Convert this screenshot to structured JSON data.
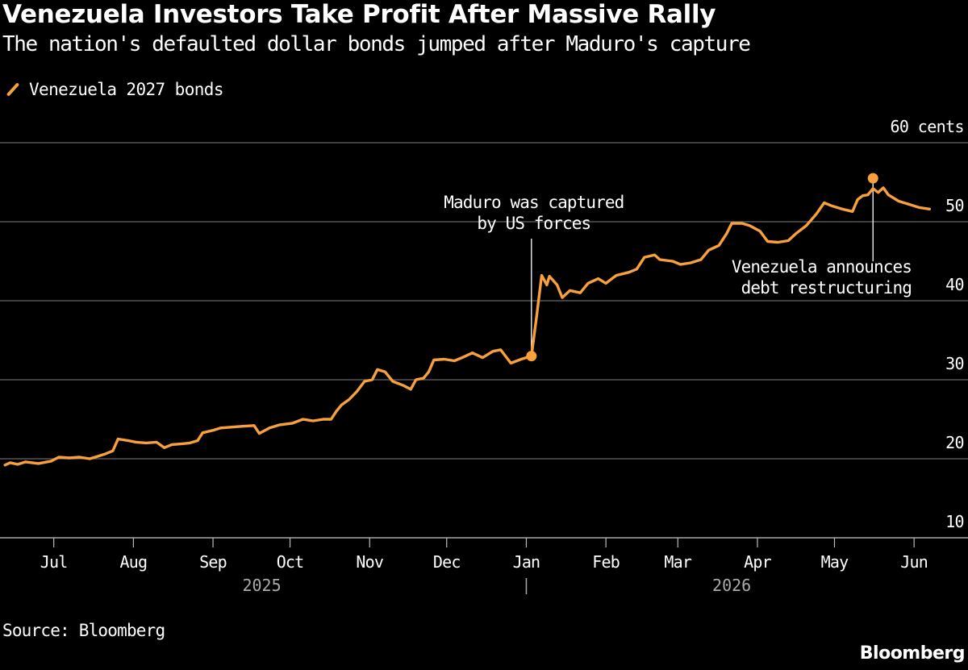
{
  "title": "Venezuela Investors Take Profit After Massive Rally",
  "subtitle": "The nation's defaulted dollar bonds jumped after Maduro's capture",
  "legend": {
    "label": "Venezuela 2027 bonds",
    "color": "#f8a03c"
  },
  "source": "Source: Bloomberg",
  "brand": "Bloomberg",
  "chart_data": {
    "type": "line",
    "x_type": "date",
    "ylim": [
      10,
      60
    ],
    "y_ticks": [
      10,
      20,
      30,
      40,
      50,
      60
    ],
    "y_tick_labels": [
      "10",
      "20",
      "30",
      "40",
      "50",
      "60 cents"
    ],
    "grid": true,
    "xlim": [
      "2025-06-11",
      "2026-06-11"
    ],
    "x_ticks": [
      {
        "date": "2025-07-01",
        "label": "Jul"
      },
      {
        "date": "2025-08-01",
        "label": "Aug"
      },
      {
        "date": "2025-09-01",
        "label": "Sep"
      },
      {
        "date": "2025-10-01",
        "label": "Oct"
      },
      {
        "date": "2025-11-01",
        "label": "Nov"
      },
      {
        "date": "2025-12-01",
        "label": "Dec"
      },
      {
        "date": "2026-01-01",
        "label": "Jan"
      },
      {
        "date": "2026-02-01",
        "label": "Feb"
      },
      {
        "date": "2026-03-01",
        "label": "Mar"
      },
      {
        "date": "2026-04-01",
        "label": "Apr"
      },
      {
        "date": "2026-05-01",
        "label": "May"
      },
      {
        "date": "2026-06-01",
        "label": "Jun"
      }
    ],
    "year_labels": [
      {
        "date": "2025-09-20",
        "label": "2025"
      },
      {
        "date": "2026-03-22",
        "label": "2026"
      }
    ],
    "year_divider": "2026-01-01",
    "series": [
      {
        "name": "Venezuela 2027 bonds",
        "color": "#f8a03c",
        "points": [
          [
            "2025-06-12",
            19.2
          ],
          [
            "2025-06-14",
            19.5
          ],
          [
            "2025-06-17",
            19.3
          ],
          [
            "2025-06-20",
            19.6
          ],
          [
            "2025-06-25",
            19.4
          ],
          [
            "2025-06-30",
            19.7
          ],
          [
            "2025-07-03",
            20.2
          ],
          [
            "2025-07-07",
            20.1
          ],
          [
            "2025-07-11",
            20.2
          ],
          [
            "2025-07-15",
            20.0
          ],
          [
            "2025-07-18",
            20.3
          ],
          [
            "2025-07-21",
            20.6
          ],
          [
            "2025-07-24",
            21.0
          ],
          [
            "2025-07-26",
            22.5
          ],
          [
            "2025-07-30",
            22.3
          ],
          [
            "2025-08-02",
            22.1
          ],
          [
            "2025-08-06",
            22.0
          ],
          [
            "2025-08-10",
            22.1
          ],
          [
            "2025-08-13",
            21.4
          ],
          [
            "2025-08-16",
            21.8
          ],
          [
            "2025-08-20",
            21.9
          ],
          [
            "2025-08-23",
            22.0
          ],
          [
            "2025-08-26",
            22.3
          ],
          [
            "2025-08-28",
            23.3
          ],
          [
            "2025-09-01",
            23.6
          ],
          [
            "2025-09-04",
            23.9
          ],
          [
            "2025-09-08",
            24.0
          ],
          [
            "2025-09-12",
            24.1
          ],
          [
            "2025-09-17",
            24.2
          ],
          [
            "2025-09-19",
            23.2
          ],
          [
            "2025-09-23",
            23.9
          ],
          [
            "2025-09-27",
            24.3
          ],
          [
            "2025-10-02",
            24.5
          ],
          [
            "2025-10-06",
            25.0
          ],
          [
            "2025-10-10",
            24.8
          ],
          [
            "2025-10-14",
            25.0
          ],
          [
            "2025-10-17",
            25.0
          ],
          [
            "2025-10-19",
            26.0
          ],
          [
            "2025-10-21",
            26.8
          ],
          [
            "2025-10-24",
            27.5
          ],
          [
            "2025-10-27",
            28.5
          ],
          [
            "2025-10-30",
            29.8
          ],
          [
            "2025-11-02",
            30.0
          ],
          [
            "2025-11-04",
            31.3
          ],
          [
            "2025-11-07",
            31.0
          ],
          [
            "2025-11-10",
            29.8
          ],
          [
            "2025-11-14",
            29.3
          ],
          [
            "2025-11-17",
            28.8
          ],
          [
            "2025-11-19",
            30.0
          ],
          [
            "2025-11-22",
            30.2
          ],
          [
            "2025-11-24",
            31.0
          ],
          [
            "2025-11-26",
            32.5
          ],
          [
            "2025-11-30",
            32.6
          ],
          [
            "2025-12-04",
            32.4
          ],
          [
            "2025-12-07",
            32.8
          ],
          [
            "2025-12-11",
            33.4
          ],
          [
            "2025-12-15",
            32.8
          ],
          [
            "2025-12-19",
            33.6
          ],
          [
            "2025-12-22",
            33.8
          ],
          [
            "2025-12-26",
            32.1
          ],
          [
            "2025-12-30",
            32.6
          ],
          [
            "2026-01-03",
            33.0
          ],
          [
            "2026-01-05",
            38.0
          ],
          [
            "2026-01-07",
            43.2
          ],
          [
            "2026-01-09",
            42.0
          ],
          [
            "2026-01-10",
            43.1
          ],
          [
            "2026-01-13",
            42.0
          ],
          [
            "2026-01-15",
            40.4
          ],
          [
            "2026-01-18",
            41.3
          ],
          [
            "2026-01-22",
            41.0
          ],
          [
            "2026-01-25",
            42.2
          ],
          [
            "2026-01-29",
            42.8
          ],
          [
            "2026-02-01",
            42.2
          ],
          [
            "2026-02-05",
            43.2
          ],
          [
            "2026-02-10",
            43.6
          ],
          [
            "2026-02-13",
            44.0
          ],
          [
            "2026-02-16",
            45.5
          ],
          [
            "2026-02-20",
            45.8
          ],
          [
            "2026-02-22",
            45.2
          ],
          [
            "2026-02-27",
            45.0
          ],
          [
            "2026-03-02",
            44.6
          ],
          [
            "2026-03-06",
            44.8
          ],
          [
            "2026-03-10",
            45.2
          ],
          [
            "2026-03-13",
            46.4
          ],
          [
            "2026-03-17",
            47.0
          ],
          [
            "2026-03-20",
            48.5
          ],
          [
            "2026-03-22",
            49.8
          ],
          [
            "2026-03-26",
            49.8
          ],
          [
            "2026-03-29",
            49.5
          ],
          [
            "2026-04-02",
            48.8
          ],
          [
            "2026-04-05",
            47.5
          ],
          [
            "2026-04-09",
            47.4
          ],
          [
            "2026-04-13",
            47.6
          ],
          [
            "2026-04-16",
            48.5
          ],
          [
            "2026-04-20",
            49.5
          ],
          [
            "2026-04-24",
            51.0
          ],
          [
            "2026-04-27",
            52.4
          ],
          [
            "2026-04-30",
            52.0
          ],
          [
            "2026-05-04",
            51.6
          ],
          [
            "2026-05-08",
            51.3
          ],
          [
            "2026-05-10",
            52.8
          ],
          [
            "2026-05-12",
            53.3
          ],
          [
            "2026-05-14",
            53.4
          ],
          [
            "2026-05-16",
            54.2
          ],
          [
            "2026-05-18",
            53.7
          ],
          [
            "2026-05-20",
            54.3
          ],
          [
            "2026-05-22",
            53.4
          ],
          [
            "2026-05-26",
            52.6
          ],
          [
            "2026-05-30",
            52.2
          ],
          [
            "2026-06-03",
            51.8
          ],
          [
            "2026-06-07",
            51.6
          ]
        ]
      }
    ],
    "annotations": [
      {
        "date": "2026-01-03",
        "value": 33.0,
        "lines": [
          "Maduro was captured",
          "by US forces"
        ],
        "position": "above"
      },
      {
        "date": "2026-05-16",
        "value": 55.5,
        "lines": [
          "Venezuela announces",
          "debt restructuring"
        ],
        "position": "below"
      }
    ]
  }
}
